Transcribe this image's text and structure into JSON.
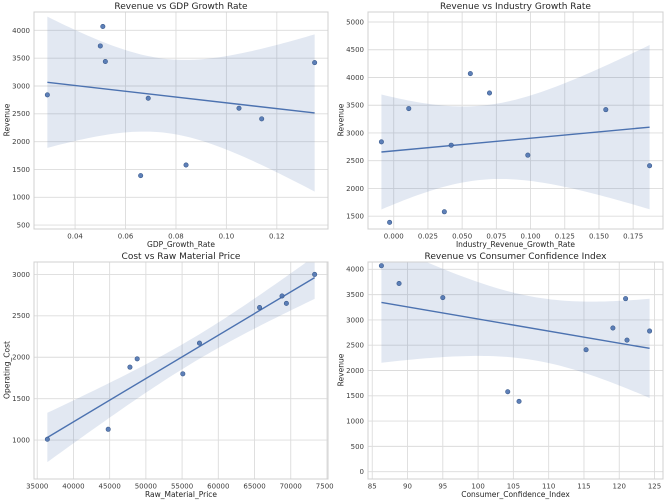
{
  "figure": {
    "background": "#ffffff"
  },
  "style": {
    "accent": "#4c72b0",
    "point_edge": "#3a5a8c",
    "band_color": "#4c72b0",
    "band_opacity": 0.16,
    "grid_color": "#dcdcdc",
    "spine_color": "#d0d0d0",
    "tick_color": "#3d3d3d",
    "text_color": "#262626"
  },
  "chart_data": [
    {
      "id": "revenue-vs-gdp",
      "type": "scatter",
      "title": "Revenue vs GDP Growth Rate",
      "xlabel": "GDP_Growth_Rate",
      "ylabel": "Revenue",
      "regression_line": true,
      "ci_level": "95%",
      "grid": true,
      "x": [
        0.029,
        0.05,
        0.051,
        0.052,
        0.066,
        0.069,
        0.084,
        0.105,
        0.114,
        0.135
      ],
      "y": [
        2840,
        3720,
        4070,
        3440,
        1390,
        2780,
        1580,
        2600,
        2410,
        3420
      ],
      "xlim": [
        0.0237,
        0.1403
      ],
      "ylim": [
        430,
        4330
      ],
      "xticks": [
        0.04,
        0.06,
        0.08,
        0.1,
        0.12
      ],
      "xtick_labels": [
        "0.04",
        "0.06",
        "0.08",
        "0.10",
        "0.12"
      ],
      "yticks": [
        500,
        1000,
        1500,
        2000,
        2500,
        3000,
        3500,
        4000
      ],
      "ytick_labels": [
        "500",
        "1000",
        "1500",
        "2000",
        "2500",
        "3000",
        "3500",
        "4000"
      ]
    },
    {
      "id": "revenue-vs-industry",
      "type": "scatter",
      "title": "Revenue vs Industry Growth Rate",
      "xlabel": "Industry_Revenue_Growth_Rate",
      "ylabel": "Revenue",
      "regression_line": true,
      "ci_level": "95%",
      "grid": true,
      "x": [
        -0.009,
        -0.003,
        0.011,
        0.037,
        0.042,
        0.056,
        0.07,
        0.098,
        0.155,
        0.187
      ],
      "y": [
        2840,
        1390,
        3440,
        1580,
        2780,
        4070,
        3720,
        2600,
        3420,
        2410
      ],
      "xlim": [
        -0.0188,
        0.1968
      ],
      "ylim": [
        1270,
        5180
      ],
      "xticks": [
        0.0,
        0.025,
        0.05,
        0.075,
        0.1,
        0.125,
        0.15,
        0.175
      ],
      "xtick_labels": [
        "0.000",
        "0.025",
        "0.050",
        "0.075",
        "0.100",
        "0.125",
        "0.150",
        "0.175"
      ],
      "yticks": [
        1500,
        2000,
        2500,
        3000,
        3500,
        4000,
        4500,
        5000
      ],
      "ytick_labels": [
        "1500",
        "2000",
        "2500",
        "3000",
        "3500",
        "4000",
        "4500",
        "5000"
      ]
    },
    {
      "id": "cost-vs-raw-material",
      "type": "scatter",
      "title": "Cost vs Raw Material Price",
      "xlabel": "Raw_Material_Price",
      "ylabel": "Operating_Cost",
      "regression_line": true,
      "ci_level": "95%",
      "grid": true,
      "x": [
        36400,
        44800,
        47800,
        48800,
        55100,
        57400,
        65700,
        68800,
        69400,
        73300
      ],
      "y": [
        1010,
        1130,
        1880,
        1980,
        1800,
        2170,
        2600,
        2740,
        2650,
        3000
      ],
      "xlim": [
        34555,
        75145
      ],
      "ylim": [
        530,
        3150
      ],
      "xticks": [
        35000,
        40000,
        45000,
        50000,
        55000,
        60000,
        65000,
        70000,
        75000
      ],
      "xtick_labels": [
        "35000",
        "40000",
        "45000",
        "50000",
        "55000",
        "60000",
        "65000",
        "70000",
        "75000"
      ],
      "yticks": [
        1000,
        1500,
        2000,
        2500,
        3000
      ],
      "ytick_labels": [
        "1000",
        "1500",
        "2000",
        "2500",
        "3000"
      ]
    },
    {
      "id": "revenue-vs-consumer-confidence",
      "type": "scatter",
      "title": "Revenue vs Consumer Confidence Index",
      "xlabel": "Consumer_Confidence_Index",
      "ylabel": "Revenue",
      "regression_line": true,
      "ci_level": "95%",
      "grid": true,
      "x": [
        86.3,
        88.8,
        95.0,
        104.2,
        105.8,
        115.3,
        119.1,
        120.9,
        121.1,
        124.3
      ],
      "y": [
        4070,
        3720,
        3440,
        1580,
        1390,
        2410,
        2840,
        3420,
        2600,
        2780
      ],
      "xlim": [
        84.4,
        126.2
      ],
      "ylim": [
        -145,
        4145
      ],
      "xticks": [
        85,
        90,
        95,
        100,
        105,
        110,
        115,
        120,
        125
      ],
      "xtick_labels": [
        "85",
        "90",
        "95",
        "100",
        "105",
        "110",
        "115",
        "120",
        "125"
      ],
      "yticks": [
        0,
        500,
        1000,
        1500,
        2000,
        2500,
        3000,
        3500,
        4000
      ],
      "ytick_labels": [
        "0",
        "500",
        "1000",
        "1500",
        "2000",
        "2500",
        "3000",
        "3500",
        "4000"
      ]
    }
  ]
}
